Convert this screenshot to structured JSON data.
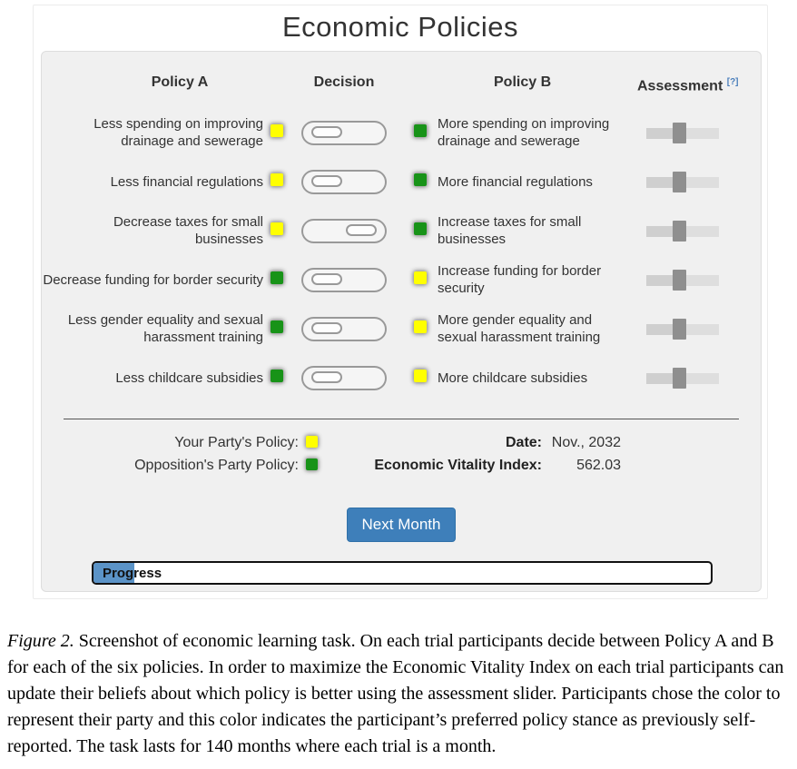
{
  "title": "Economic Policies",
  "columns": {
    "policy_a": "Policy A",
    "decision": "Decision",
    "policy_b": "Policy B",
    "assessment": "Assessment",
    "assessment_help": "[?]"
  },
  "colors": {
    "yellow": "#ffff00",
    "green": "#189318",
    "button_blue": "#3e7fba",
    "progress_blue": "#5b93c7"
  },
  "rows": [
    {
      "policy_a": "Less spending on improving drainage and sewerage",
      "policy_b": "More spending on improving drainage and sewerage",
      "a_party": "yellow",
      "b_party": "green",
      "decision": "A",
      "assessment_percent": 45
    },
    {
      "policy_a": "Less financial regulations",
      "policy_b": "More financial regulations",
      "a_party": "yellow",
      "b_party": "green",
      "decision": "A",
      "assessment_percent": 45
    },
    {
      "policy_a": "Decrease taxes for small businesses",
      "policy_b": "Increase taxes for small businesses",
      "a_party": "yellow",
      "b_party": "green",
      "decision": "B",
      "assessment_percent": 45
    },
    {
      "policy_a": "Decrease funding for border security",
      "policy_b": "Increase funding for border security",
      "a_party": "green",
      "b_party": "yellow",
      "decision": "A",
      "assessment_percent": 45
    },
    {
      "policy_a": "Less gender equality and sexual harassment training",
      "policy_b": "More gender equality and sexual harassment training",
      "a_party": "green",
      "b_party": "yellow",
      "decision": "A",
      "assessment_percent": 45
    },
    {
      "policy_a": "Less childcare subsidies",
      "policy_b": "More childcare subsidies",
      "a_party": "green",
      "b_party": "yellow",
      "decision": "A",
      "assessment_percent": 45
    }
  ],
  "legend": {
    "your_party_label": "Your Party's Policy:",
    "your_party_color": "yellow",
    "opposition_label": "Opposition's Party Policy:",
    "opposition_color": "green"
  },
  "status": {
    "date_label": "Date:",
    "date_value": "Nov., 2032",
    "evi_label": "Economic Vitality Index:",
    "evi_value": "562.03"
  },
  "next_month_label": "Next Month",
  "progress": {
    "label": "Progress",
    "percent": 6.6
  },
  "caption": {
    "figure_label": "Figure 2.",
    "text": " Screenshot of economic learning task. On each trial participants decide between Policy A and B for each of the six policies. In order to maximize the Economic Vitality Index on each trial participants can update their beliefs about which policy is better using the assessment slider. Participants chose the color to represent their party and this color indicates the participant’s preferred policy stance as previously self-reported. The task lasts for 140 months where each trial is a month."
  }
}
